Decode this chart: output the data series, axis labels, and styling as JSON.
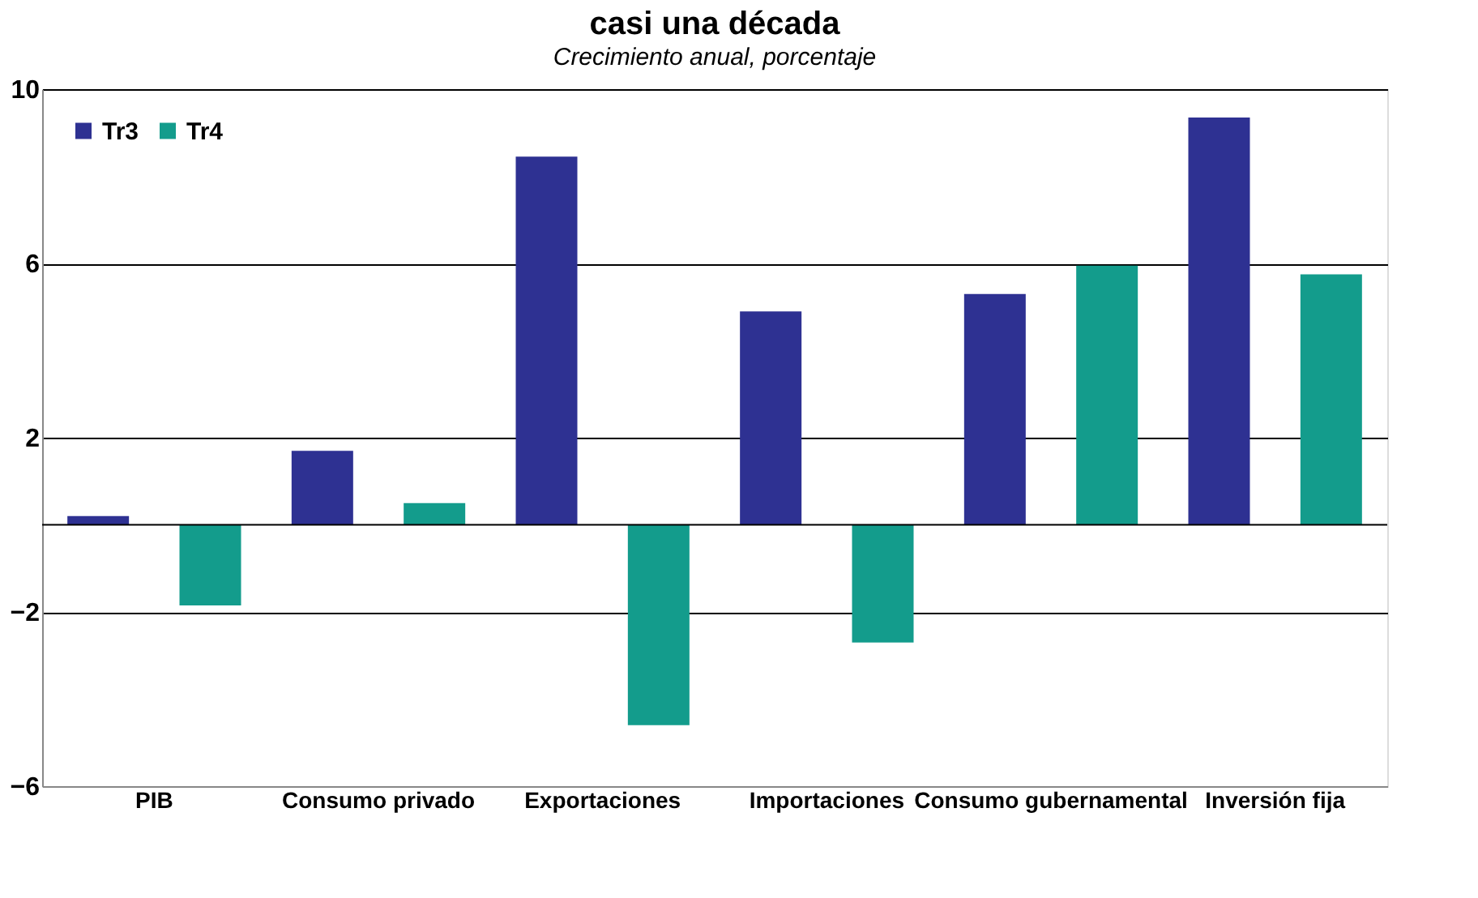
{
  "chart_data": {
    "type": "bar",
    "title": "casi una década",
    "subtitle": "Crecimiento anual, porcentaje",
    "categories": [
      "PIB",
      "Consumo privado",
      "Exportaciones",
      "Importaciones",
      "Consumo gubernamental",
      "Inversión fija"
    ],
    "series": [
      {
        "name": "Tr3",
        "color": "#2e3192",
        "values": [
          0.2,
          1.7,
          8.45,
          4.9,
          5.3,
          9.35
        ]
      },
      {
        "name": "Tr4",
        "color": "#139c8c",
        "values": [
          -1.85,
          0.5,
          -4.6,
          -2.7,
          5.95,
          5.75
        ]
      }
    ],
    "ylim": [
      -6,
      10
    ],
    "yticks": [
      -6,
      -2,
      2,
      6,
      10
    ],
    "grid": "y",
    "legend": "top left"
  }
}
